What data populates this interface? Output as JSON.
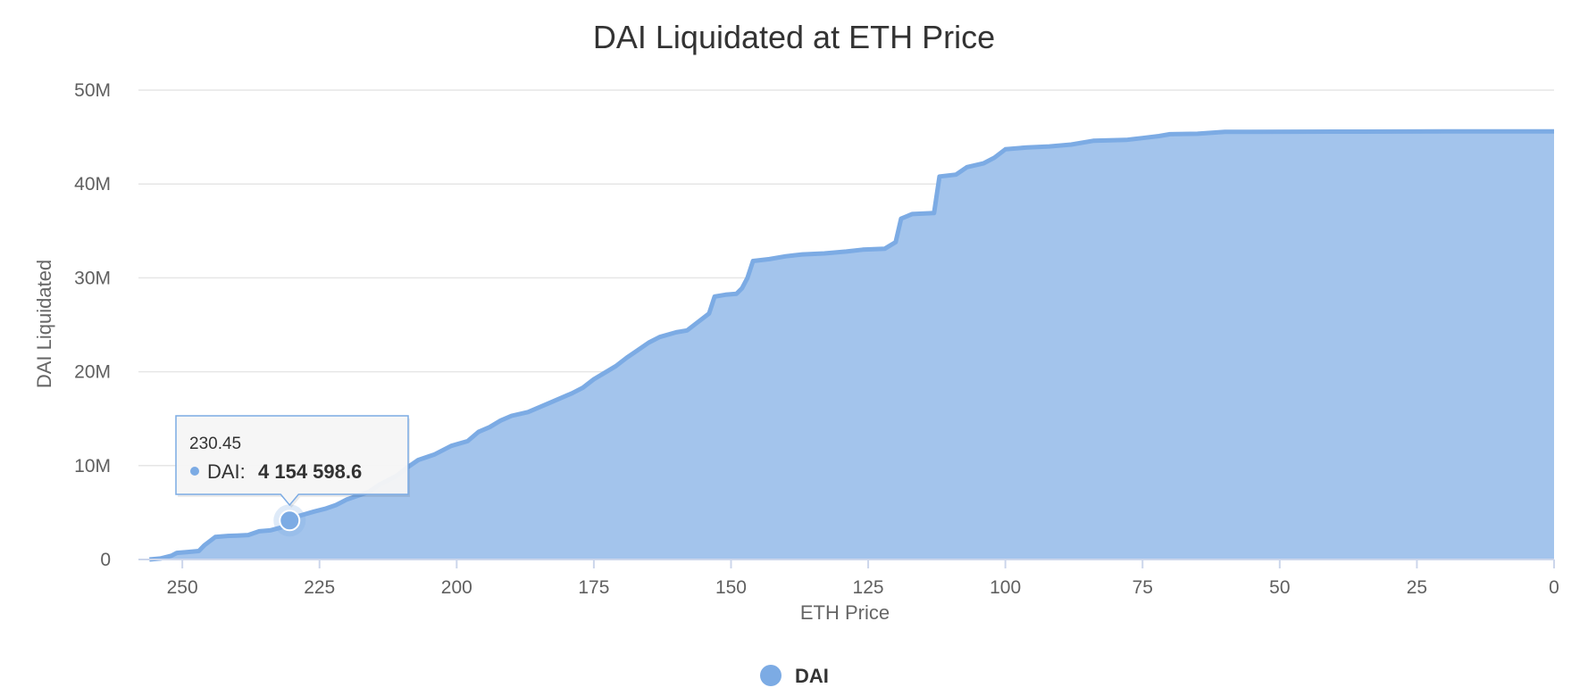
{
  "chart_data": {
    "type": "area",
    "title": "DAI Liquidated at ETH Price",
    "xlabel": "ETH Price",
    "ylabel": "DAI Liquidated",
    "x_reversed": true,
    "xlim": [
      0,
      258
    ],
    "ylim": [
      0,
      50000000
    ],
    "x_ticks": [
      250,
      225,
      200,
      175,
      150,
      125,
      100,
      75,
      50,
      25,
      0
    ],
    "y_ticks": [
      0,
      10000000,
      20000000,
      30000000,
      40000000,
      50000000
    ],
    "y_tick_labels": [
      "0",
      "10M",
      "20M",
      "30M",
      "40M",
      "50M"
    ],
    "grid": "horizontal",
    "legend": {
      "position": "bottom-center"
    },
    "colors": {
      "fill": "#a3c4ec",
      "line": "#7cabe4",
      "grid": "#e6e6e6",
      "axis": "#ccd6eb"
    },
    "series": [
      {
        "name": "DAI",
        "points": [
          [
            256,
            0
          ],
          [
            254,
            100000
          ],
          [
            252,
            400000
          ],
          [
            251,
            700000
          ],
          [
            249,
            800000
          ],
          [
            247,
            900000
          ],
          [
            246,
            1500000
          ],
          [
            244,
            2400000
          ],
          [
            242,
            2500000
          ],
          [
            240,
            2550000
          ],
          [
            238,
            2600000
          ],
          [
            236,
            3000000
          ],
          [
            234,
            3100000
          ],
          [
            232,
            3400000
          ],
          [
            230.45,
            4154598.6
          ],
          [
            229,
            4600000
          ],
          [
            226,
            5100000
          ],
          [
            224,
            5400000
          ],
          [
            222,
            5800000
          ],
          [
            220,
            6400000
          ],
          [
            218,
            6800000
          ],
          [
            216,
            7200000
          ],
          [
            214,
            8000000
          ],
          [
            211,
            8900000
          ],
          [
            209,
            9800000
          ],
          [
            207,
            10600000
          ],
          [
            204,
            11200000
          ],
          [
            201,
            12100000
          ],
          [
            198,
            12600000
          ],
          [
            196,
            13600000
          ],
          [
            194,
            14100000
          ],
          [
            192,
            14800000
          ],
          [
            190,
            15300000
          ],
          [
            187,
            15700000
          ],
          [
            185,
            16200000
          ],
          [
            183,
            16700000
          ],
          [
            181,
            17200000
          ],
          [
            179,
            17700000
          ],
          [
            177,
            18300000
          ],
          [
            175,
            19200000
          ],
          [
            173,
            19900000
          ],
          [
            171,
            20600000
          ],
          [
            169,
            21500000
          ],
          [
            167,
            22300000
          ],
          [
            165,
            23100000
          ],
          [
            163,
            23700000
          ],
          [
            160,
            24200000
          ],
          [
            158,
            24400000
          ],
          [
            156,
            25300000
          ],
          [
            154,
            26200000
          ],
          [
            153,
            28000000
          ],
          [
            151,
            28200000
          ],
          [
            149,
            28300000
          ],
          [
            148,
            28900000
          ],
          [
            147,
            30000000
          ],
          [
            146,
            31800000
          ],
          [
            143,
            32000000
          ],
          [
            140,
            32300000
          ],
          [
            137,
            32500000
          ],
          [
            133,
            32600000
          ],
          [
            129,
            32800000
          ],
          [
            126,
            33000000
          ],
          [
            122,
            33100000
          ],
          [
            120,
            33800000
          ],
          [
            119,
            36300000
          ],
          [
            117,
            36800000
          ],
          [
            113,
            36900000
          ],
          [
            112,
            40800000
          ],
          [
            109,
            41000000
          ],
          [
            107,
            41800000
          ],
          [
            104,
            42200000
          ],
          [
            102,
            42800000
          ],
          [
            100,
            43700000
          ],
          [
            96,
            43900000
          ],
          [
            92,
            44000000
          ],
          [
            88,
            44200000
          ],
          [
            84,
            44600000
          ],
          [
            78,
            44700000
          ],
          [
            75,
            44900000
          ],
          [
            72,
            45100000
          ],
          [
            70,
            45300000
          ],
          [
            65,
            45350000
          ],
          [
            60,
            45550000
          ],
          [
            40,
            45580000
          ],
          [
            20,
            45600000
          ],
          [
            0,
            45600000
          ]
        ]
      }
    ],
    "tooltip": {
      "x_label": "230.45",
      "series_name": "DAI:",
      "value_label": "4 154 598.6",
      "x": 230.45,
      "y": 4154598.6
    }
  }
}
